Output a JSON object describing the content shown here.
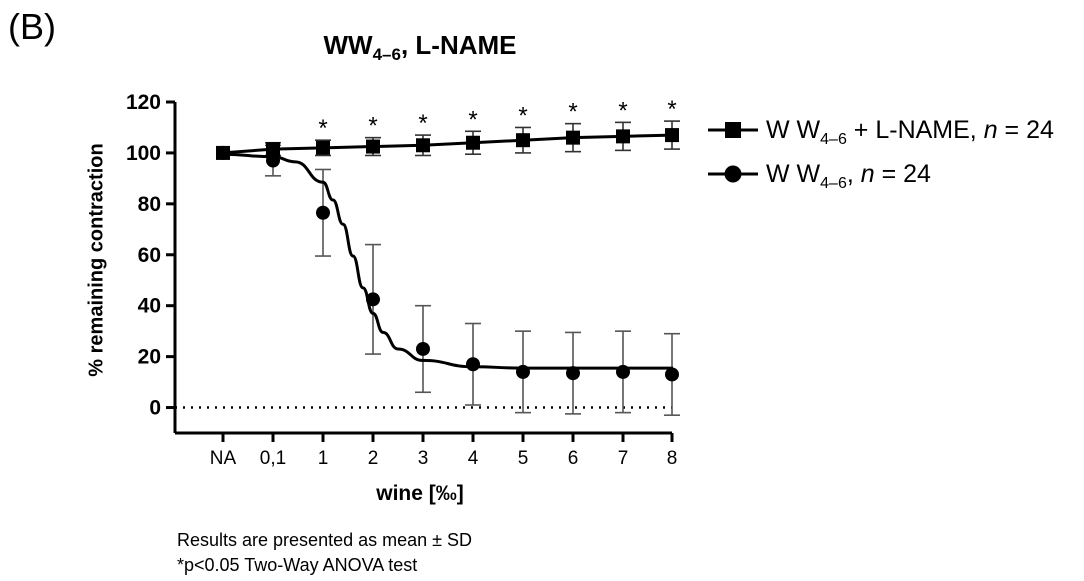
{
  "panel_label": "(B)",
  "title": {
    "main": "WW",
    "sub": "4–6",
    "suffix": ", L-NAME"
  },
  "legend": [
    {
      "main": "W W",
      "sub": "4–6",
      "suffix": " + L-NAME, ",
      "n_italic": "n",
      "n_value": " = 24",
      "marker": "square"
    },
    {
      "main": "W W",
      "sub": "4–6",
      "suffix": ", ",
      "n_italic": "n",
      "n_value": " = 24",
      "marker": "circle"
    }
  ],
  "footnotes": {
    "line1": "Results are presented as mean ± SD",
    "line2": "*p<0.05 Two-Way ANOVA test"
  },
  "chart_data": {
    "type": "line",
    "title": "WW4–6, L-NAME",
    "xlabel": "wine [‰]",
    "ylabel": "% remaining contraction",
    "categories": [
      "NA",
      "0,1",
      "1",
      "2",
      "3",
      "4",
      "5",
      "6",
      "7",
      "8"
    ],
    "y_ticks": [
      0,
      20,
      40,
      60,
      80,
      100,
      120
    ],
    "ylim": [
      -10,
      120
    ],
    "reference_line": {
      "y": 0,
      "style": "dotted"
    },
    "series": [
      {
        "name": "WW4–6 + L-NAME, n = 24",
        "marker": "square",
        "values": [
          100,
          101.5,
          102,
          102.5,
          103,
          104,
          105,
          106,
          106.5,
          107
        ],
        "sd": [
          1,
          2.5,
          3,
          3.5,
          4,
          4.5,
          5,
          5.5,
          5.5,
          5.5
        ],
        "significance": [
          "",
          "",
          "*",
          "*",
          "*",
          "*",
          "*",
          "*",
          "*",
          "*"
        ]
      },
      {
        "name": "WW4–6, n = 24",
        "marker": "circle",
        "values": [
          100,
          97,
          76.5,
          42.5,
          23,
          17,
          14,
          13.5,
          14,
          13
        ],
        "sd": [
          1,
          6,
          17,
          21.5,
          17,
          16,
          16,
          16,
          16,
          16
        ]
      }
    ],
    "fit_curve": {
      "series": "WW4–6, n = 24",
      "points": [
        [
          0.1,
          98.5
        ],
        [
          0.5,
          96.5
        ],
        [
          1,
          88.5
        ],
        [
          1.2,
          81.5
        ],
        [
          1.4,
          72
        ],
        [
          1.6,
          59.5
        ],
        [
          1.8,
          47
        ],
        [
          2,
          37
        ],
        [
          2.2,
          29.5
        ],
        [
          2.5,
          23
        ],
        [
          3,
          18.5
        ],
        [
          4,
          16
        ],
        [
          5,
          15.5
        ],
        [
          8,
          15.5
        ]
      ]
    },
    "legend_position": "right",
    "grid": false
  }
}
